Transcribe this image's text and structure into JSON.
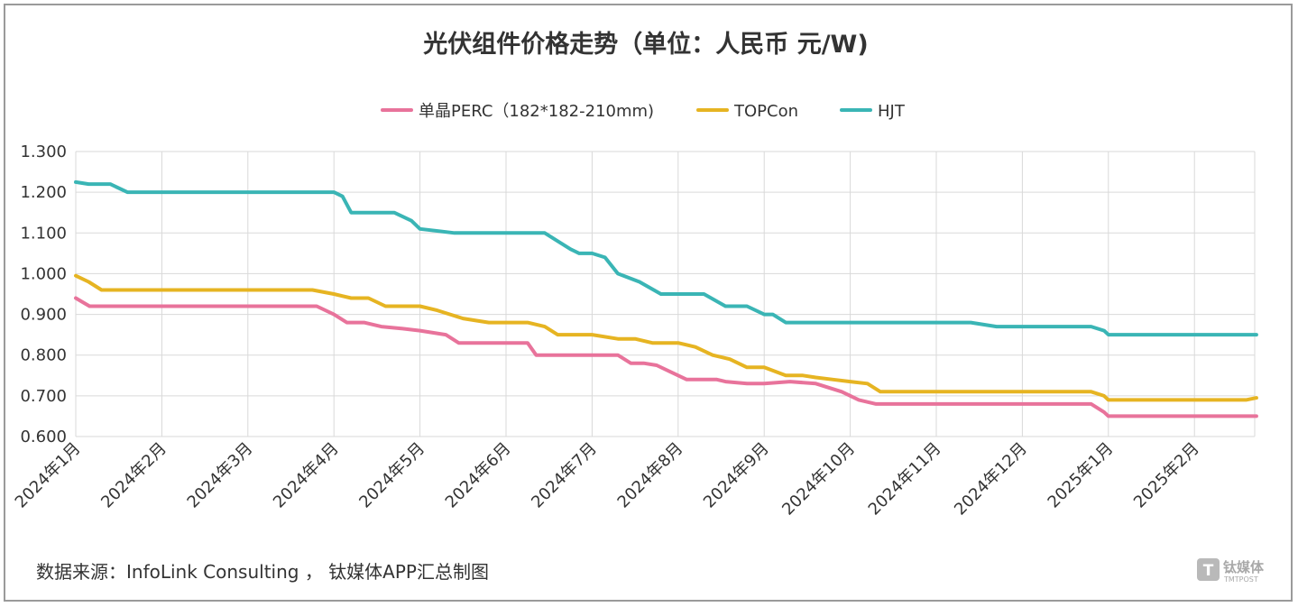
{
  "chart_data": {
    "type": "line",
    "title": "光伏组件价格走势（单位：人民币 元/W)",
    "xlabel": "",
    "ylabel": "",
    "ylim": [
      0.6,
      1.3
    ],
    "yticks": [
      "1.300",
      "1.200",
      "1.100",
      "1.000",
      "0.900",
      "0.800",
      "0.700",
      "0.600"
    ],
    "ytick_values": [
      1.3,
      1.2,
      1.1,
      1.0,
      0.9,
      0.8,
      0.7,
      0.6
    ],
    "categories": [
      "2024年1月",
      "2024年2月",
      "2024年3月",
      "2024年4月",
      "2024年5月",
      "2024年6月",
      "2024年7月",
      "2024年8月",
      "2024年9月",
      "2024年10月",
      "2024年11月",
      "2024年12月",
      "2025年1月",
      "2025年2月"
    ],
    "x_range": [
      0,
      13.72
    ],
    "legend_position": "top-center",
    "grid": true,
    "series": [
      {
        "name": "单晶PERC（182*182-210mm)",
        "color": "#e8739b",
        "x": [
          0,
          0.08,
          0.16,
          0.3,
          0.5,
          1.0,
          2.0,
          2.6,
          2.7,
          2.8,
          3.0,
          3.15,
          3.35,
          3.55,
          3.8,
          4.0,
          4.3,
          4.45,
          4.55,
          4.75,
          5.0,
          5.25,
          5.35,
          5.5,
          6.0,
          6.3,
          6.45,
          6.6,
          6.75,
          6.9,
          7.1,
          7.3,
          7.45,
          7.55,
          7.8,
          8.0,
          8.3,
          8.6,
          8.9,
          9.1,
          9.3,
          9.35,
          10.0,
          11.0,
          11.55,
          11.8,
          11.95,
          12.0,
          13.0,
          13.72
        ],
        "values": [
          0.94,
          0.93,
          0.92,
          0.92,
          0.92,
          0.92,
          0.92,
          0.92,
          0.92,
          0.92,
          0.9,
          0.88,
          0.88,
          0.87,
          0.865,
          0.86,
          0.85,
          0.83,
          0.83,
          0.83,
          0.83,
          0.83,
          0.8,
          0.8,
          0.8,
          0.8,
          0.78,
          0.78,
          0.775,
          0.76,
          0.74,
          0.74,
          0.74,
          0.735,
          0.73,
          0.73,
          0.735,
          0.73,
          0.71,
          0.69,
          0.68,
          0.68,
          0.68,
          0.68,
          0.68,
          0.68,
          0.66,
          0.65,
          0.65,
          0.65
        ]
      },
      {
        "name": "TOPCon",
        "color": "#e6b422",
        "x": [
          0,
          0.15,
          0.3,
          0.45,
          0.6,
          1.0,
          2.0,
          2.6,
          2.75,
          3.0,
          3.2,
          3.4,
          3.6,
          3.8,
          4.0,
          4.2,
          4.35,
          4.5,
          4.8,
          5.0,
          5.25,
          5.45,
          5.6,
          6.0,
          6.3,
          6.5,
          6.7,
          7.0,
          7.2,
          7.4,
          7.6,
          7.8,
          8.0,
          8.25,
          8.45,
          8.6,
          8.8,
          9.0,
          9.2,
          9.35,
          10.0,
          11.0,
          11.55,
          11.8,
          11.95,
          12.0,
          13.0,
          13.6,
          13.72
        ],
        "values": [
          0.995,
          0.98,
          0.96,
          0.96,
          0.96,
          0.96,
          0.96,
          0.96,
          0.96,
          0.95,
          0.94,
          0.94,
          0.92,
          0.92,
          0.92,
          0.91,
          0.9,
          0.89,
          0.88,
          0.88,
          0.88,
          0.87,
          0.85,
          0.85,
          0.84,
          0.84,
          0.83,
          0.83,
          0.82,
          0.8,
          0.79,
          0.77,
          0.77,
          0.75,
          0.75,
          0.745,
          0.74,
          0.735,
          0.73,
          0.71,
          0.71,
          0.71,
          0.71,
          0.71,
          0.7,
          0.69,
          0.69,
          0.69,
          0.695
        ]
      },
      {
        "name": "HJT",
        "color": "#3ab5b5",
        "x": [
          0,
          0.15,
          0.4,
          0.6,
          1.0,
          2.0,
          2.75,
          2.9,
          3.0,
          3.1,
          3.2,
          3.5,
          3.7,
          3.9,
          4.0,
          4.4,
          4.8,
          5.0,
          5.1,
          5.3,
          5.45,
          5.6,
          5.75,
          5.85,
          6.0,
          6.15,
          6.3,
          6.55,
          6.8,
          6.95,
          7.05,
          7.3,
          7.55,
          7.8,
          8.0,
          8.1,
          8.25,
          9.0,
          10.0,
          10.4,
          10.7,
          11.0,
          11.5,
          11.8,
          11.95,
          12.0,
          13.0,
          13.72
        ],
        "values": [
          1.225,
          1.22,
          1.22,
          1.2,
          1.2,
          1.2,
          1.2,
          1.2,
          1.2,
          1.19,
          1.15,
          1.15,
          1.15,
          1.13,
          1.11,
          1.1,
          1.1,
          1.1,
          1.1,
          1.1,
          1.1,
          1.08,
          1.06,
          1.05,
          1.05,
          1.04,
          1.0,
          0.98,
          0.95,
          0.95,
          0.95,
          0.95,
          0.92,
          0.92,
          0.9,
          0.9,
          0.88,
          0.88,
          0.88,
          0.88,
          0.87,
          0.87,
          0.87,
          0.87,
          0.86,
          0.85,
          0.85,
          0.85
        ]
      }
    ]
  },
  "footer": {
    "source": "数据来源：InfoLink Consulting ， 钛媒体APP汇总制图"
  },
  "watermark": {
    "glyph": "T",
    "name": "钛媒体",
    "sub": "TMTPOST"
  }
}
